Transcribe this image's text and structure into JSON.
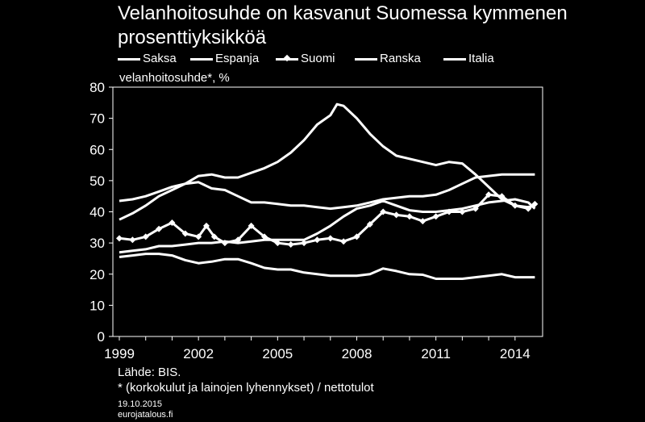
{
  "chart_data": {
    "type": "line",
    "title": "Velanhoitosuhde on kasvanut Suomessa kymmenen prosenttiyksikköä",
    "ylabel": "velanhoitosuhde*, %",
    "xlabel": "",
    "ylim": [
      0,
      80
    ],
    "xlim": [
      1999,
      2014.8
    ],
    "yticks": [
      0,
      10,
      20,
      30,
      40,
      50,
      60,
      70,
      80
    ],
    "xticks": [
      "1999",
      "2002",
      "2005",
      "2008",
      "2011",
      "2014"
    ],
    "legend_position": "top",
    "grid": false,
    "series": [
      {
        "name": "Saksa",
        "marker": "none",
        "points": [
          [
            1999,
            25.5
          ],
          [
            1999.5,
            26
          ],
          [
            2000,
            26.5
          ],
          [
            2000.5,
            26.5
          ],
          [
            2001,
            26
          ],
          [
            2001.5,
            24.5
          ],
          [
            2002,
            23.5
          ],
          [
            2002.5,
            24
          ],
          [
            2003,
            24.8
          ],
          [
            2003.5,
            24.8
          ],
          [
            2004,
            23.5
          ],
          [
            2004.5,
            22
          ],
          [
            2005,
            21.5
          ],
          [
            2005.5,
            21.5
          ],
          [
            2006,
            20.5
          ],
          [
            2006.5,
            20
          ],
          [
            2007,
            19.5
          ],
          [
            2007.5,
            19.5
          ],
          [
            2008,
            19.5
          ],
          [
            2008.5,
            20
          ],
          [
            2009,
            21.8
          ],
          [
            2009.5,
            21
          ],
          [
            2010,
            20
          ],
          [
            2010.5,
            19.8
          ],
          [
            2011,
            18.5
          ],
          [
            2011.5,
            18.5
          ],
          [
            2012,
            18.5
          ],
          [
            2012.5,
            19
          ],
          [
            2013,
            19.5
          ],
          [
            2013.5,
            20
          ],
          [
            2014,
            19
          ],
          [
            2014.5,
            19
          ],
          [
            2014.75,
            19
          ]
        ]
      },
      {
        "name": "Espanja",
        "marker": "none",
        "points": [
          [
            1999,
            37.5
          ],
          [
            1999.5,
            39.5
          ],
          [
            2000,
            42
          ],
          [
            2000.5,
            45
          ],
          [
            2001,
            47
          ],
          [
            2001.5,
            49
          ],
          [
            2002,
            51.5
          ],
          [
            2002.5,
            52
          ],
          [
            2003,
            51
          ],
          [
            2003.5,
            51
          ],
          [
            2004,
            52.5
          ],
          [
            2004.5,
            54
          ],
          [
            2005,
            56
          ],
          [
            2005.5,
            59
          ],
          [
            2006,
            63
          ],
          [
            2006.5,
            68
          ],
          [
            2007,
            71
          ],
          [
            2007.25,
            74.5
          ],
          [
            2007.5,
            74
          ],
          [
            2008,
            70
          ],
          [
            2008.5,
            65
          ],
          [
            2009,
            61
          ],
          [
            2009.5,
            58
          ],
          [
            2010,
            57
          ],
          [
            2010.5,
            56
          ],
          [
            2011,
            55
          ],
          [
            2011.5,
            56
          ],
          [
            2012,
            55.5
          ],
          [
            2012.5,
            52
          ],
          [
            2013,
            48
          ],
          [
            2013.5,
            44
          ],
          [
            2014,
            42
          ],
          [
            2014.5,
            41.5
          ],
          [
            2014.75,
            42
          ]
        ]
      },
      {
        "name": "Suomi",
        "marker": "diamond",
        "points": [
          [
            1999,
            31.5
          ],
          [
            1999.5,
            31
          ],
          [
            2000,
            32
          ],
          [
            2000.5,
            34.5
          ],
          [
            2001,
            36.5
          ],
          [
            2001.5,
            33
          ],
          [
            2002,
            32
          ],
          [
            2002.3,
            35.5
          ],
          [
            2002.6,
            32
          ],
          [
            2003,
            30
          ],
          [
            2003.5,
            31
          ],
          [
            2004,
            35.5
          ],
          [
            2004.5,
            32
          ],
          [
            2005,
            30
          ],
          [
            2005.5,
            29.5
          ],
          [
            2006,
            30
          ],
          [
            2006.5,
            31
          ],
          [
            2007,
            31.5
          ],
          [
            2007.5,
            30.5
          ],
          [
            2008,
            32
          ],
          [
            2008.5,
            36
          ],
          [
            2009,
            40
          ],
          [
            2009.5,
            39
          ],
          [
            2010,
            38.5
          ],
          [
            2010.5,
            37
          ],
          [
            2011,
            38.5
          ],
          [
            2011.5,
            40
          ],
          [
            2012,
            40
          ],
          [
            2012.5,
            41
          ],
          [
            2013,
            45.5
          ],
          [
            2013.5,
            45
          ],
          [
            2014,
            42
          ],
          [
            2014.5,
            41
          ],
          [
            2014.75,
            42.5
          ]
        ]
      },
      {
        "name": "Ranska",
        "marker": "none",
        "points": [
          [
            1999,
            27
          ],
          [
            1999.5,
            27.5
          ],
          [
            2000,
            28
          ],
          [
            2000.5,
            29
          ],
          [
            2001,
            29
          ],
          [
            2001.5,
            29.5
          ],
          [
            2002,
            30
          ],
          [
            2002.5,
            30
          ],
          [
            2003,
            30.5
          ],
          [
            2003.5,
            30
          ],
          [
            2004,
            30.5
          ],
          [
            2004.5,
            31
          ],
          [
            2005,
            31
          ],
          [
            2005.5,
            31
          ],
          [
            2006,
            31
          ],
          [
            2006.5,
            33
          ],
          [
            2007,
            35.5
          ],
          [
            2007.5,
            38.5
          ],
          [
            2008,
            41
          ],
          [
            2008.5,
            42
          ],
          [
            2009,
            43.5
          ],
          [
            2009.5,
            42
          ],
          [
            2010,
            40.5
          ],
          [
            2010.5,
            40
          ],
          [
            2011,
            40
          ],
          [
            2011.5,
            40.5
          ],
          [
            2012,
            41
          ],
          [
            2012.5,
            42
          ],
          [
            2013,
            43
          ],
          [
            2013.5,
            43.5
          ],
          [
            2014,
            44
          ],
          [
            2014.5,
            43
          ],
          [
            2014.75,
            41
          ]
        ]
      },
      {
        "name": "Italia",
        "marker": "none",
        "points": [
          [
            1999,
            43.5
          ],
          [
            1999.5,
            44
          ],
          [
            2000,
            45
          ],
          [
            2000.5,
            46.5
          ],
          [
            2001,
            48
          ],
          [
            2001.5,
            49
          ],
          [
            2002,
            49.5
          ],
          [
            2002.5,
            47.5
          ],
          [
            2003,
            47
          ],
          [
            2003.5,
            45
          ],
          [
            2004,
            43
          ],
          [
            2004.5,
            43
          ],
          [
            2005,
            42.5
          ],
          [
            2005.5,
            42
          ],
          [
            2006,
            42
          ],
          [
            2006.5,
            41.5
          ],
          [
            2007,
            41
          ],
          [
            2007.5,
            41.5
          ],
          [
            2008,
            42
          ],
          [
            2008.5,
            43
          ],
          [
            2009,
            44
          ],
          [
            2009.5,
            44.5
          ],
          [
            2010,
            45
          ],
          [
            2010.5,
            45
          ],
          [
            2011,
            45.5
          ],
          [
            2011.5,
            47
          ],
          [
            2012,
            49
          ],
          [
            2012.5,
            51
          ],
          [
            2013,
            51.5
          ],
          [
            2013.5,
            52
          ],
          [
            2014,
            52
          ],
          [
            2014.5,
            52
          ],
          [
            2014.75,
            52
          ]
        ]
      }
    ]
  },
  "footer": {
    "source": "Lähde: BIS.",
    "note": "* (korkokulut ja lainojen lyhennykset) / nettotulot",
    "date": "19.10.2015",
    "site": "eurojatalous.fi"
  }
}
